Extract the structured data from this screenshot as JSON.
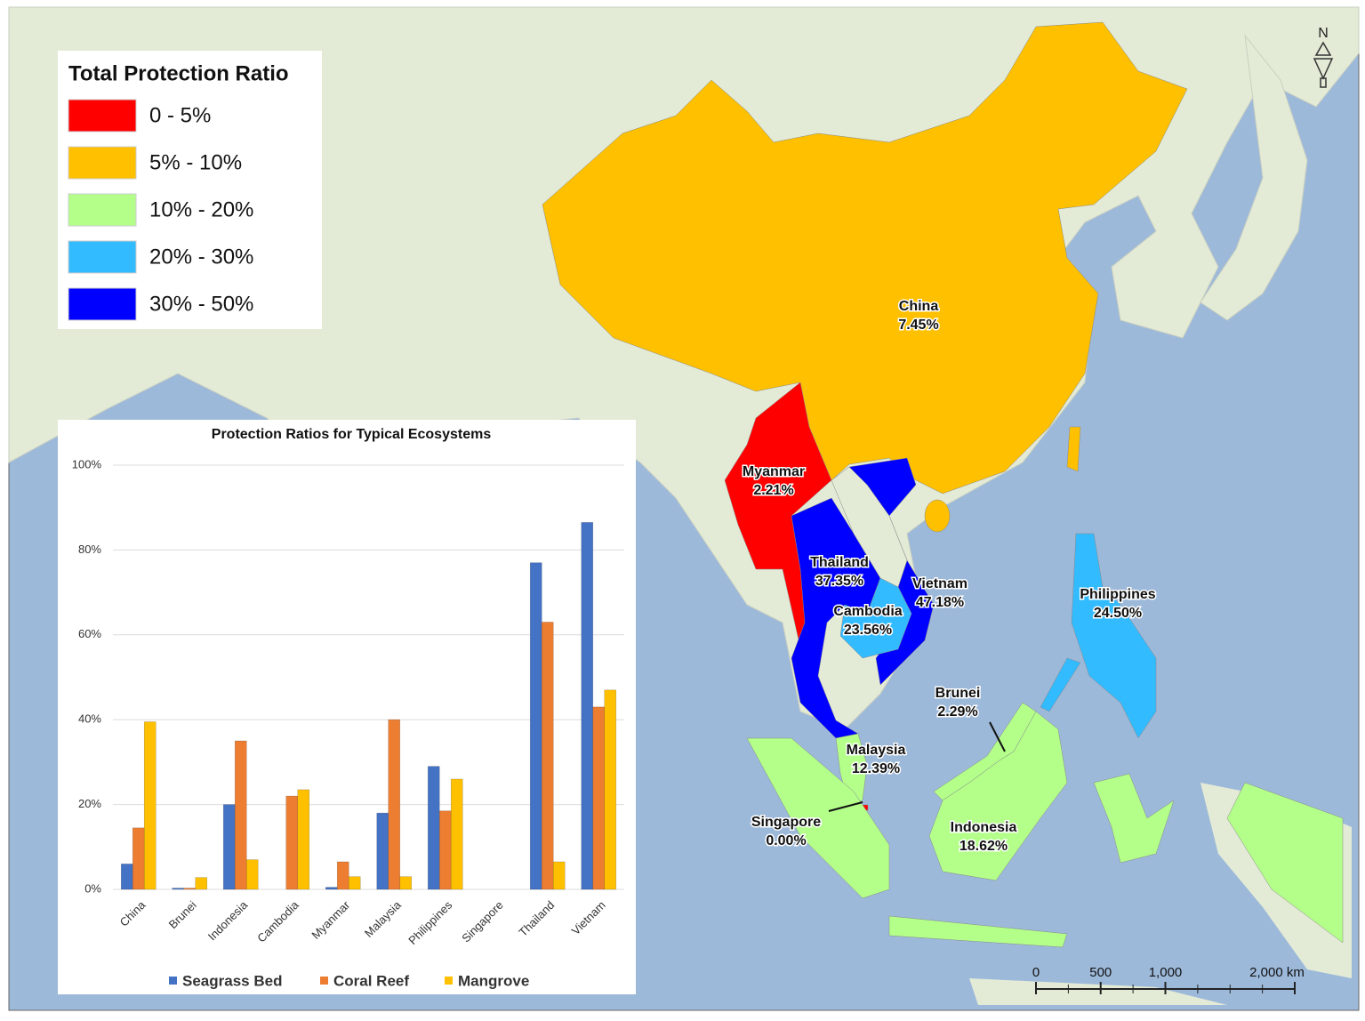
{
  "legend": {
    "title": "Total Protection Ratio",
    "items": [
      {
        "label": "0 - 5%",
        "color": "#ff0000"
      },
      {
        "label": "5% - 10%",
        "color": "#ffc000"
      },
      {
        "label": "10% - 20%",
        "color": "#b3ff8a"
      },
      {
        "label": "20% - 30%",
        "color": "#33bbff"
      },
      {
        "label": "30% - 50%",
        "color": "#0000ff"
      }
    ]
  },
  "regions": [
    {
      "name": "China",
      "label": "7.45%",
      "color": "#ffc000"
    },
    {
      "name": "Myanmar",
      "label": "2.21%",
      "color": "#ff0000"
    },
    {
      "name": "Thailand",
      "label": "37.35%",
      "color": "#0000ff"
    },
    {
      "name": "Vietnam",
      "label": "47.18%",
      "color": "#0000ff"
    },
    {
      "name": "Cambodia",
      "label": "23.56%",
      "color": "#33bbff"
    },
    {
      "name": "Philippines",
      "label": "24.50%",
      "color": "#33bbff"
    },
    {
      "name": "Brunei",
      "label": "2.29%",
      "color": "#ff0000"
    },
    {
      "name": "Malaysia",
      "label": "12.39%",
      "color": "#b3ff8a"
    },
    {
      "name": "Singapore",
      "label": "0.00%",
      "color": "#ff0000"
    },
    {
      "name": "Indonesia",
      "label": "18.62%",
      "color": "#b3ff8a"
    }
  ],
  "north": "N",
  "scale_bar": {
    "ticks": [
      0,
      500,
      {
        "value": 1000,
        "label": "1,000"
      },
      {
        "value": 2000,
        "label": "2,000 km"
      }
    ]
  },
  "chart_data": {
    "type": "bar",
    "title": "Protection Ratios for Typical Ecosystems",
    "categories": [
      "China",
      "Brunei",
      "Indonesia",
      "Cambodia",
      "Myanmar",
      "Malaysia",
      "Philippines",
      "Singapore",
      "Thailand",
      "Vietnam"
    ],
    "series": [
      {
        "name": "Seagrass Bed",
        "color": "#4472c4",
        "values": [
          6,
          0.3,
          20,
          0,
          0.5,
          18,
          29,
          0,
          77,
          86.5
        ]
      },
      {
        "name": "Coral Reef",
        "color": "#ed7d31",
        "values": [
          14.5,
          0.3,
          35,
          22,
          6.5,
          40,
          18.5,
          0,
          63,
          43
        ]
      },
      {
        "name": "Mangrove",
        "color": "#ffc000",
        "values": [
          39.5,
          2.8,
          7,
          23.5,
          3,
          3,
          26,
          0,
          6.5,
          47
        ]
      }
    ],
    "ylim": [
      0,
      100
    ],
    "yticks": [
      {
        "value": 0,
        "label": "0%"
      },
      {
        "value": 20,
        "label": "20%"
      },
      {
        "value": 40,
        "label": "40%"
      },
      {
        "value": 60,
        "label": "60%"
      },
      {
        "value": 80,
        "label": "80%"
      },
      {
        "value": 100,
        "label": "100%"
      }
    ],
    "grid": true
  }
}
